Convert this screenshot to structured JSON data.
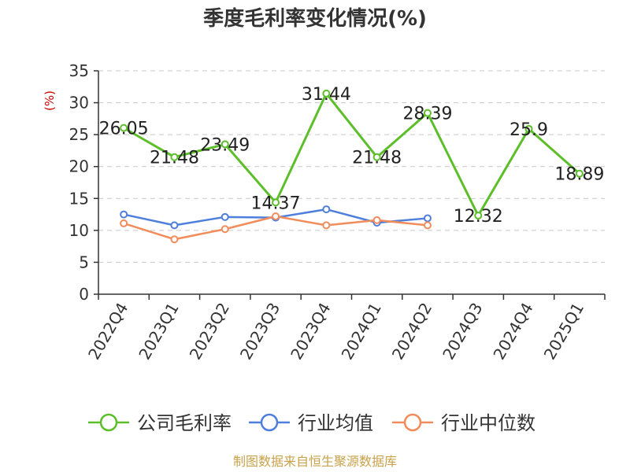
{
  "chart_data": {
    "type": "line",
    "title": "季度毛利率变化情况(%)",
    "ylabel": "(%)",
    "xlabel": "",
    "ylim": [
      0,
      35
    ],
    "yticks": [
      0,
      5,
      10,
      15,
      20,
      25,
      30,
      35
    ],
    "grid": true,
    "legend_position": "bottom",
    "categories": [
      "2022Q4",
      "2023Q1",
      "2023Q2",
      "2023Q3",
      "2023Q4",
      "2024Q1",
      "2024Q2",
      "2024Q3",
      "2024Q4",
      "2025Q1"
    ],
    "series": [
      {
        "name": "公司毛利率",
        "color": "#5cbf2a",
        "values": [
          26.05,
          21.48,
          23.49,
          14.37,
          31.44,
          21.48,
          28.39,
          12.32,
          25.9,
          18.89
        ],
        "labels": [
          "26.05",
          "21.48",
          "23.49",
          "14.37",
          "31.44",
          "21.48",
          "28.39",
          "12.32",
          "25.9",
          "18.89"
        ]
      },
      {
        "name": "行业均值",
        "color": "#4f7fdc",
        "values": [
          12.5,
          10.8,
          12.1,
          12.0,
          13.3,
          11.2,
          11.9,
          null,
          null,
          null
        ]
      },
      {
        "name": "行业中位数",
        "color": "#f28c5b",
        "values": [
          11.1,
          8.6,
          10.2,
          12.2,
          10.8,
          11.6,
          10.8,
          null,
          null,
          null
        ]
      }
    ]
  },
  "footer": {
    "source": "制图数据来自恒生聚源数据库"
  }
}
